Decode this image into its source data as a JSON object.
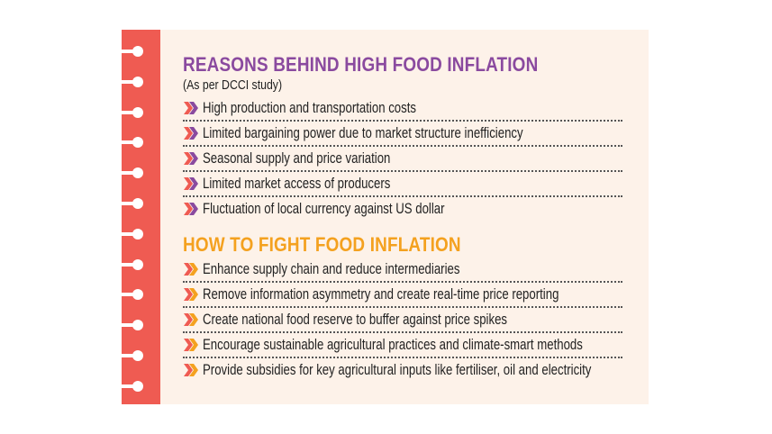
{
  "reasons": {
    "title": "REASONS BEHIND HIGH FOOD INFLATION",
    "subtitle": "(As per DCCI study)",
    "items": [
      "High production and transportation costs",
      "Limited bargaining power due to market structure inefficiency",
      "Seasonal supply and price variation",
      "Limited market access of producers",
      "Fluctuation of local currency against US dollar"
    ]
  },
  "solutions": {
    "title": "HOW TO FIGHT FOOD INFLATION",
    "items": [
      "Enhance supply chain and reduce intermediaries",
      "Remove information asymmetry and create real-time price reporting",
      "Create national food reserve to buffer against price spikes",
      "Encourage sustainable agricultural practices and climate-smart methods",
      "Provide subsidies for key agricultural inputs like fertiliser, oil and electricity"
    ]
  },
  "colors": {
    "strip": "#ef5b52",
    "background": "#fdf2e9",
    "reasons_accent": "#8a4a9f",
    "solutions_accent": "#f4a11f"
  },
  "icons": {
    "bullet": "double-chevron-right-icon",
    "binding": "notebook-ring-hole-icon"
  }
}
